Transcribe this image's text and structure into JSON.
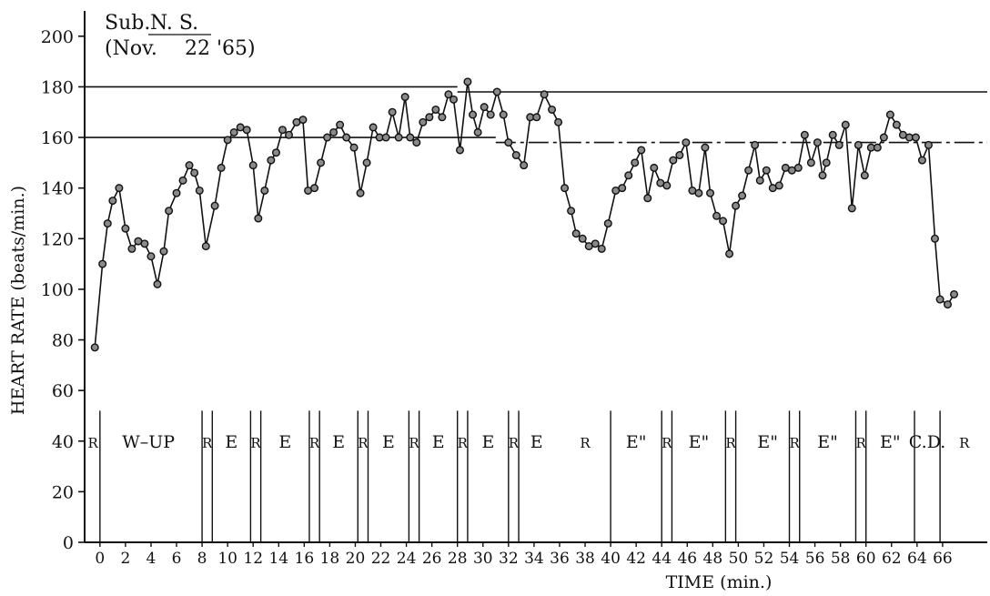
{
  "chart_data": {
    "type": "line",
    "title_line1": "Sub.",
    "title_subject": "N. S.",
    "title_line2": "(Nov.",
    "title_date": "22 '65)",
    "xlabel": "TIME (min.)",
    "ylabel": "HEART RATE (beats/min.)",
    "xlim": [
      -1.2,
      69.5
    ],
    "ylim": [
      0,
      210
    ],
    "y_ticks": [
      0,
      20,
      40,
      60,
      80,
      100,
      120,
      140,
      160,
      180,
      200
    ],
    "x_ticks": [
      0,
      2,
      4,
      6,
      8,
      10,
      12,
      14,
      16,
      18,
      20,
      22,
      24,
      26,
      28,
      30,
      32,
      34,
      36,
      38,
      40,
      42,
      44,
      46,
      48,
      50,
      52,
      54,
      56,
      58,
      60,
      62,
      64,
      66
    ],
    "reference_lines": [
      {
        "y": 180,
        "style": "solid",
        "x_start": -1.2,
        "x_end": 28
      },
      {
        "y": 178,
        "style": "solid",
        "x_start": 28,
        "x_end": 69.5
      },
      {
        "y": 160,
        "style": "solid",
        "x_start": -1.2,
        "x_end": 31
      },
      {
        "y": 158,
        "style": "dash-dot",
        "x_start": 31,
        "x_end": 69.5
      }
    ],
    "phase_boundaries": [
      0,
      8,
      8.8,
      11.8,
      12.6,
      16.4,
      17.2,
      20.2,
      21,
      24.2,
      25,
      28,
      28.8,
      32,
      32.8,
      40,
      44,
      44.8,
      49,
      49.8,
      54,
      54.8,
      59.2,
      60,
      63.8,
      65.8
    ],
    "phases": [
      {
        "label": "R",
        "x": -0.55,
        "small": true
      },
      {
        "label": "W–UP",
        "x": 3.8,
        "small": false
      },
      {
        "label": "R",
        "x": 8.4,
        "small": true
      },
      {
        "label": "E",
        "x": 10.3,
        "small": false
      },
      {
        "label": "R",
        "x": 12.2,
        "small": true
      },
      {
        "label": "E",
        "x": 14.5,
        "small": false
      },
      {
        "label": "R",
        "x": 16.8,
        "small": true
      },
      {
        "label": "E",
        "x": 18.7,
        "small": false
      },
      {
        "label": "R",
        "x": 20.6,
        "small": true
      },
      {
        "label": "E",
        "x": 22.6,
        "small": false
      },
      {
        "label": "R",
        "x": 24.6,
        "small": true
      },
      {
        "label": "E",
        "x": 26.5,
        "small": false
      },
      {
        "label": "R",
        "x": 28.4,
        "small": true
      },
      {
        "label": "E",
        "x": 30.4,
        "small": false
      },
      {
        "label": "R",
        "x": 32.4,
        "small": true
      },
      {
        "label": "E",
        "x": 34.2,
        "small": false
      },
      {
        "label": "R",
        "x": 38.0,
        "small": true
      },
      {
        "label": "E\"",
        "x": 42.0,
        "small": false
      },
      {
        "label": "R",
        "x": 44.4,
        "small": true
      },
      {
        "label": "E\"",
        "x": 46.9,
        "small": false
      },
      {
        "label": "R",
        "x": 49.4,
        "small": true
      },
      {
        "label": "E\"",
        "x": 52.3,
        "small": false
      },
      {
        "label": "R",
        "x": 54.4,
        "small": true
      },
      {
        "label": "E\"",
        "x": 57.0,
        "small": false
      },
      {
        "label": "R",
        "x": 59.6,
        "small": true
      },
      {
        "label": "E\"",
        "x": 61.9,
        "small": false
      },
      {
        "label": "C.D.",
        "x": 64.8,
        "small": false
      },
      {
        "label": "R",
        "x": 67.7,
        "small": true
      }
    ],
    "series": [
      {
        "values": [
          [
            -0.4,
            77
          ],
          [
            0.2,
            110
          ],
          [
            0.6,
            126
          ],
          [
            1.0,
            135
          ],
          [
            1.5,
            140
          ],
          [
            2.0,
            124
          ],
          [
            2.5,
            116
          ],
          [
            3.0,
            119
          ],
          [
            3.5,
            118
          ],
          [
            4.0,
            113
          ],
          [
            4.5,
            102
          ],
          [
            5.0,
            115
          ],
          [
            5.4,
            131
          ],
          [
            6.0,
            138
          ],
          [
            6.5,
            143
          ],
          [
            7.0,
            149
          ],
          [
            7.4,
            146
          ],
          [
            7.8,
            139
          ],
          [
            8.3,
            117
          ],
          [
            9.0,
            133
          ],
          [
            9.5,
            148
          ],
          [
            10.0,
            159
          ],
          [
            10.5,
            162
          ],
          [
            11.0,
            164
          ],
          [
            11.5,
            163
          ],
          [
            12.0,
            149
          ],
          [
            12.4,
            128
          ],
          [
            12.9,
            139
          ],
          [
            13.4,
            151
          ],
          [
            13.8,
            154
          ],
          [
            14.3,
            163
          ],
          [
            14.8,
            161
          ],
          [
            15.4,
            166
          ],
          [
            15.9,
            167
          ],
          [
            16.3,
            139
          ],
          [
            16.8,
            140
          ],
          [
            17.3,
            150
          ],
          [
            17.8,
            160
          ],
          [
            18.3,
            162
          ],
          [
            18.8,
            165
          ],
          [
            19.3,
            160
          ],
          [
            19.9,
            156
          ],
          [
            20.4,
            138
          ],
          [
            20.9,
            150
          ],
          [
            21.4,
            164
          ],
          [
            21.9,
            160
          ],
          [
            22.4,
            160
          ],
          [
            22.9,
            170
          ],
          [
            23.4,
            160
          ],
          [
            23.9,
            176
          ],
          [
            24.3,
            160
          ],
          [
            24.8,
            158
          ],
          [
            25.3,
            166
          ],
          [
            25.8,
            168
          ],
          [
            26.3,
            171
          ],
          [
            26.8,
            168
          ],
          [
            27.3,
            177
          ],
          [
            27.7,
            175
          ],
          [
            28.2,
            155
          ],
          [
            28.8,
            182
          ],
          [
            29.2,
            169
          ],
          [
            29.6,
            162
          ],
          [
            30.1,
            172
          ],
          [
            30.6,
            169
          ],
          [
            31.1,
            178
          ],
          [
            31.6,
            169
          ],
          [
            32.0,
            158
          ],
          [
            32.6,
            153
          ],
          [
            33.2,
            149
          ],
          [
            33.7,
            168
          ],
          [
            34.2,
            168
          ],
          [
            34.8,
            177
          ],
          [
            35.4,
            171
          ],
          [
            35.9,
            166
          ],
          [
            36.4,
            140
          ],
          [
            36.9,
            131
          ],
          [
            37.3,
            122
          ],
          [
            37.8,
            120
          ],
          [
            38.3,
            117
          ],
          [
            38.8,
            118
          ],
          [
            39.3,
            116
          ],
          [
            39.8,
            126
          ],
          [
            40.4,
            139
          ],
          [
            40.9,
            140
          ],
          [
            41.4,
            145
          ],
          [
            41.9,
            150
          ],
          [
            42.4,
            155
          ],
          [
            42.9,
            136
          ],
          [
            43.4,
            148
          ],
          [
            43.9,
            142
          ],
          [
            44.4,
            141
          ],
          [
            44.9,
            151
          ],
          [
            45.4,
            153
          ],
          [
            45.9,
            158
          ],
          [
            46.4,
            139
          ],
          [
            46.9,
            138
          ],
          [
            47.4,
            156
          ],
          [
            47.8,
            138
          ],
          [
            48.3,
            129
          ],
          [
            48.8,
            127
          ],
          [
            49.3,
            114
          ],
          [
            49.8,
            133
          ],
          [
            50.3,
            137
          ],
          [
            50.8,
            147
          ],
          [
            51.3,
            157
          ],
          [
            51.7,
            143
          ],
          [
            52.2,
            147
          ],
          [
            52.7,
            140
          ],
          [
            53.2,
            141
          ],
          [
            53.7,
            148
          ],
          [
            54.2,
            147
          ],
          [
            54.7,
            148
          ],
          [
            55.2,
            161
          ],
          [
            55.7,
            150
          ],
          [
            56.2,
            158
          ],
          [
            56.6,
            145
          ],
          [
            56.9,
            150
          ],
          [
            57.4,
            161
          ],
          [
            57.9,
            157
          ],
          [
            58.4,
            165
          ],
          [
            58.9,
            132
          ],
          [
            59.4,
            157
          ],
          [
            59.9,
            145
          ],
          [
            60.4,
            156
          ],
          [
            60.9,
            156
          ],
          [
            61.4,
            160
          ],
          [
            61.9,
            169
          ],
          [
            62.4,
            165
          ],
          [
            62.9,
            161
          ],
          [
            63.4,
            160
          ],
          [
            63.9,
            160
          ],
          [
            64.4,
            151
          ],
          [
            64.9,
            157
          ],
          [
            65.4,
            120
          ],
          [
            65.8,
            96
          ],
          [
            66.4,
            94
          ],
          [
            66.9,
            98
          ]
        ]
      }
    ]
  }
}
